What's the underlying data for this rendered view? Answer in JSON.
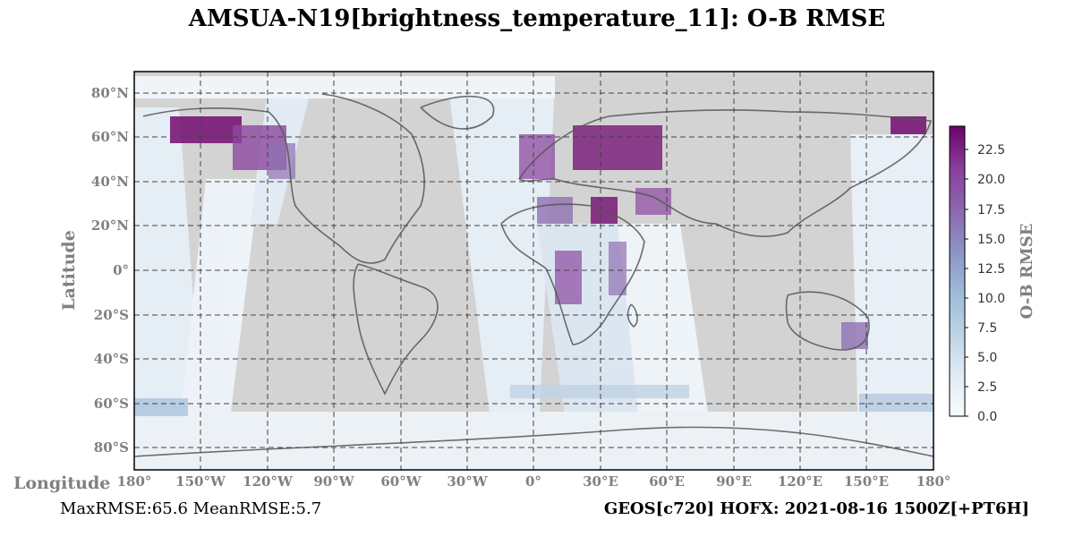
{
  "title": "AMSUA-N19[brightness_temperature_11]: O-B RMSE",
  "map": {
    "x_axis_title": "Longitude",
    "y_axis_title": "Latitude",
    "lat_ticks": [
      "80°N",
      "60°N",
      "40°N",
      "20°N",
      "0°",
      "20°S",
      "40°S",
      "60°S",
      "80°S"
    ],
    "lon_ticks": [
      "180°",
      "150°W",
      "120°W",
      "90°W",
      "60°W",
      "30°W",
      "0°",
      "30°E",
      "60°E",
      "90°E",
      "120°E",
      "150°E",
      "180°"
    ],
    "background_color": "#d3d3d3",
    "grid": "dashed"
  },
  "colorbar": {
    "title": "O-B RMSE",
    "ticks": [
      "0.0",
      "2.5",
      "5.0",
      "7.5",
      "10.0",
      "12.5",
      "15.0",
      "17.5",
      "20.0",
      "22.5"
    ],
    "range": [
      0,
      24.5
    ],
    "colormap": [
      "#f7fcfd",
      "#e0ecf4",
      "#bfd3e6",
      "#9ebcda",
      "#8c96c6",
      "#8c6bb1",
      "#88419d",
      "#6e016b"
    ]
  },
  "stats": {
    "max_mean_text": "MaxRMSE:65.6 MeanRMSE:5.7"
  },
  "source": {
    "text": "GEOS[c720] HOFX: 2021-08-16 1500Z[+PT6H]"
  }
}
